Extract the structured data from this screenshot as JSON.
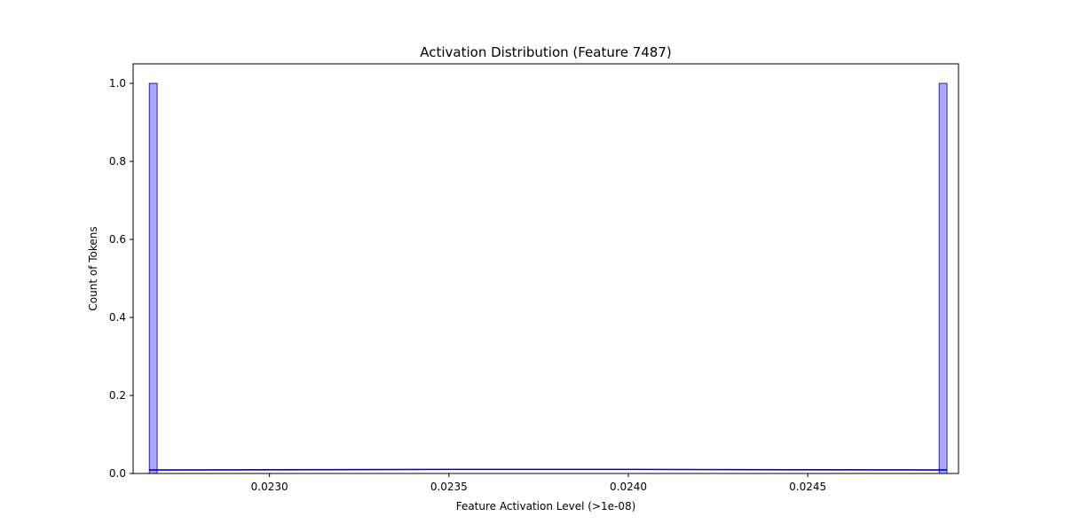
{
  "chart_data": {
    "type": "bar",
    "title": "Activation Distribution (Feature 7487)",
    "xlabel": "Feature Activation Level (>1e-08)",
    "ylabel": "Count of Tokens",
    "xlim": [
      0.02262,
      0.02492
    ],
    "ylim": [
      0,
      1.05
    ],
    "xticks": [
      "0.0230",
      "0.0235",
      "0.0240",
      "0.0245"
    ],
    "xtick_values": [
      0.023,
      0.0235,
      0.024,
      0.0245
    ],
    "yticks": [
      "0.0",
      "0.2",
      "0.4",
      "0.6",
      "0.8",
      "1.0"
    ],
    "ytick_values": [
      0.0,
      0.2,
      0.4,
      0.6,
      0.8,
      1.0
    ],
    "bins": [
      {
        "x0": 0.022665,
        "x1": 0.022687,
        "count": 1
      },
      {
        "x0": 0.024866,
        "x1": 0.024888,
        "count": 1
      }
    ],
    "kde": {
      "x": [
        0.022665,
        0.023,
        0.0235,
        0.024,
        0.0245,
        0.024888
      ],
      "y": [
        0.009,
        0.0095,
        0.0105,
        0.0105,
        0.0095,
        0.009
      ]
    },
    "bar_fill": "#aaaaf8",
    "bar_edge": "#00008b",
    "kde_color": "#0000cd",
    "grid": false,
    "legend": "none"
  }
}
